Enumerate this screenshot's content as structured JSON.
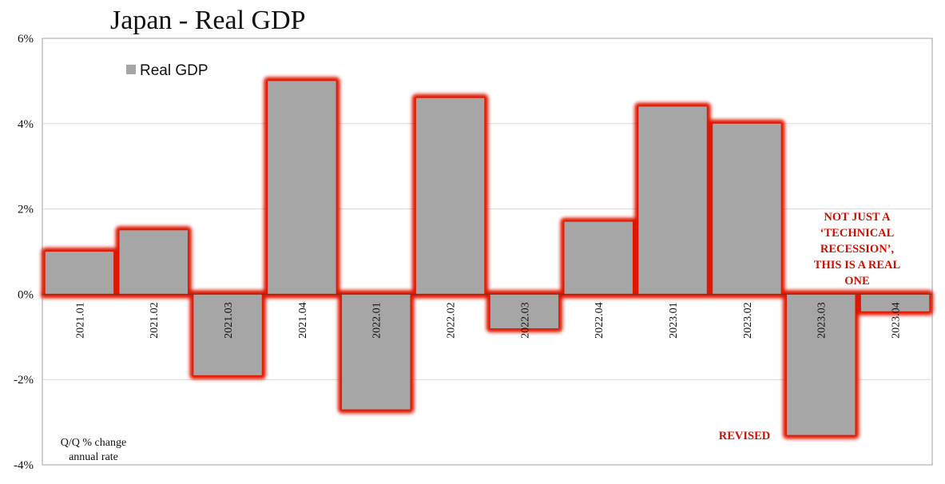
{
  "chart_data": {
    "type": "bar",
    "title": "Japan - Real GDP",
    "legend": "Real GDP",
    "legend_position": "top-left",
    "categories": [
      "2021.01",
      "2021.02",
      "2021.03",
      "2021.04",
      "2022.01",
      "2022.02",
      "2022.03",
      "2022.04",
      "2023.01",
      "2023.02",
      "2023.03",
      "2023.04"
    ],
    "values": [
      1.0,
      1.5,
      -1.9,
      5.0,
      -2.7,
      4.6,
      -0.8,
      1.7,
      4.4,
      4.0,
      -3.3,
      -0.4
    ],
    "ylim": [
      -4,
      6
    ],
    "yticks": [
      6,
      4,
      2,
      0,
      -2,
      -4
    ],
    "ytick_labels": [
      "6%",
      "4%",
      "2%",
      "0%",
      "-2%",
      "-4%"
    ],
    "ylabel": "Q/Q % change annual rate",
    "ylabel_lines": [
      "Q/Q % change",
      "annual rate"
    ],
    "grid": true,
    "bar_color": "#a6a6a6",
    "highlight_color": "#e01800",
    "annotations": {
      "callout_lines": [
        "NOT JUST A",
        "‘TECHNICAL",
        "RECESSION’,",
        "THIS IS A REAL",
        "ONE"
      ],
      "revised": "REVISED"
    }
  }
}
